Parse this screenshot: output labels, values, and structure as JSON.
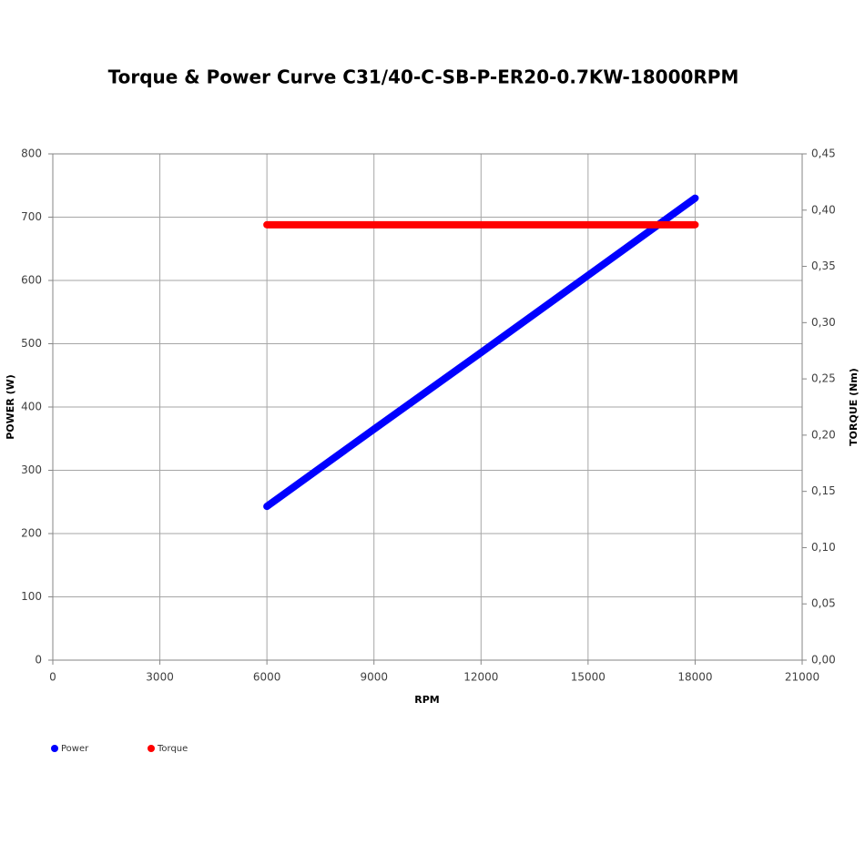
{
  "chart_data": {
    "type": "line",
    "title": "Torque & Power Curve C31/40-C-SB-P-ER20-0.7KW-18000RPM",
    "x_label": "RPM",
    "y_label": "POWER (W)",
    "y2_label": "TORQUE (Nm)",
    "x": [
      6000,
      9000,
      12000,
      15000,
      18000
    ],
    "series": [
      {
        "name": "Power",
        "color": "#0000ff",
        "values": [
          243,
          365,
          486,
          608,
          730
        ]
      },
      {
        "name": "Torque",
        "color": "#ff0000",
        "axis": "y2",
        "values": [
          0.387,
          0.387,
          0.387,
          0.387,
          0.387
        ]
      }
    ],
    "xlim": [
      0,
      21000
    ],
    "xticks": [
      0,
      3000,
      6000,
      9000,
      12000,
      15000,
      18000,
      21000
    ],
    "ylim": [
      0,
      800
    ],
    "yticks": [
      0,
      100,
      200,
      300,
      400,
      500,
      600,
      700,
      800
    ],
    "y2lim": [
      0,
      0.45
    ],
    "y2ticks": [
      {
        "value": 0,
        "label": "0,00"
      },
      {
        "value": 0.05,
        "label": "0,05"
      },
      {
        "value": 0.1,
        "label": "0,10"
      },
      {
        "value": 0.15,
        "label": "0,15"
      },
      {
        "value": 0.2,
        "label": "0,20"
      },
      {
        "value": 0.25,
        "label": "0,25"
      },
      {
        "value": 0.3,
        "label": "0,30"
      },
      {
        "value": 0.35,
        "label": "0,35"
      },
      {
        "value": 0.4,
        "label": "0,40"
      },
      {
        "value": 0.45,
        "label": "0,45"
      }
    ],
    "grid": true,
    "legend": "bottom-left"
  }
}
